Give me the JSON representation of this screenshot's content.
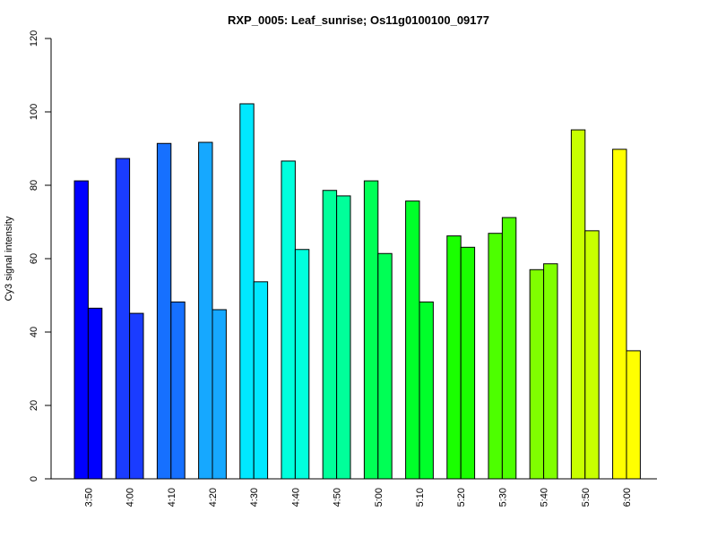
{
  "chart_data": {
    "type": "bar",
    "title": "RXP_0005: Leaf_sunrise; Os11g0100100_09177",
    "xlabel": "",
    "ylabel": "Cy3 signal intensity",
    "ylim": [
      0,
      120
    ],
    "yticks": [
      0,
      20,
      40,
      60,
      80,
      100,
      120
    ],
    "grid": false,
    "legend": "none",
    "categories": [
      "3:50",
      "4:00",
      "4:10",
      "4:20",
      "4:30",
      "4:40",
      "4:50",
      "5:00",
      "5:10",
      "5:20",
      "5:30",
      "5:40",
      "5:50",
      "6:00"
    ],
    "colors": [
      "#0000ff",
      "#1a3cff",
      "#1670ff",
      "#16a8ff",
      "#00e8ff",
      "#00ffdd",
      "#00ff9a",
      "#00ff55",
      "#00ff2a",
      "#1aff00",
      "#4dff00",
      "#80ff00",
      "#c8ff00",
      "#ffff00"
    ],
    "series": [
      {
        "values": [
          81.2,
          87.3,
          91.4,
          91.7,
          102.2,
          86.6,
          78.6,
          81.2,
          75.7,
          66.2,
          66.9,
          57.0,
          95.1,
          89.8
        ]
      },
      {
        "values": [
          46.5,
          45.1,
          48.2,
          46.1,
          53.7,
          62.5,
          77.1,
          61.4,
          48.2,
          63.1,
          71.2,
          58.6,
          67.6,
          34.9
        ]
      }
    ]
  }
}
